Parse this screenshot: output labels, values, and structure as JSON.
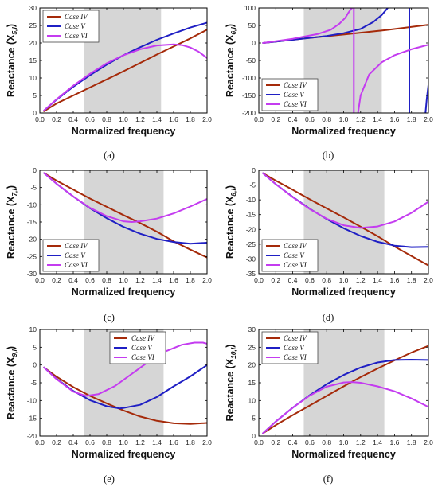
{
  "colors": {
    "Case IV": "#a52a0a",
    "Case V": "#1f1fc4",
    "Case VI": "#c43cf0",
    "band": "#d6d6d6"
  },
  "chart_data": [
    {
      "type": "line",
      "caption": "(a)",
      "xlabel": "Normalized frequency",
      "ylabel": "Reactance (X",
      "ylabel_sub": "5,l",
      "xlim": [
        0,
        2
      ],
      "ylim": [
        0,
        30
      ],
      "xticks": [
        0.0,
        0.2,
        0.4,
        0.6,
        0.8,
        1.0,
        1.2,
        1.4,
        1.6,
        1.8,
        2.0
      ],
      "yticks": [
        0,
        5,
        10,
        15,
        20,
        25,
        30
      ],
      "shaded": [
        0.53,
        1.45
      ],
      "legend": "top-left",
      "series": [
        {
          "name": "Case IV",
          "x": [
            0.05,
            0.2,
            0.4,
            0.6,
            0.8,
            1.0,
            1.2,
            1.4,
            1.6,
            1.8,
            2.0
          ],
          "y": [
            0.5,
            2.7,
            5.0,
            7.3,
            9.6,
            11.9,
            14.3,
            16.7,
            19.0,
            21.3,
            23.8
          ]
        },
        {
          "name": "Case V",
          "x": [
            0.05,
            0.2,
            0.4,
            0.6,
            0.8,
            1.0,
            1.2,
            1.4,
            1.6,
            1.8,
            2.0
          ],
          "y": [
            0.7,
            3.8,
            7.5,
            10.8,
            13.8,
            16.5,
            18.8,
            20.9,
            22.7,
            24.4,
            25.8
          ]
        },
        {
          "name": "Case VI",
          "x": [
            0.05,
            0.2,
            0.4,
            0.6,
            0.8,
            1.0,
            1.2,
            1.4,
            1.6,
            1.7,
            1.8,
            1.9,
            2.0
          ],
          "y": [
            0.7,
            3.9,
            7.8,
            11.2,
            14.2,
            16.5,
            18.2,
            19.3,
            19.6,
            19.4,
            18.7,
            17.5,
            15.7
          ]
        }
      ]
    },
    {
      "type": "line",
      "caption": "(b)",
      "xlabel": "Normalized frequency",
      "ylabel": "Reactance (X",
      "ylabel_sub": "6,l",
      "xlim": [
        0,
        2
      ],
      "ylim": [
        -200,
        100
      ],
      "xticks": [
        0.0,
        0.2,
        0.4,
        0.6,
        0.8,
        1.0,
        1.2,
        1.4,
        1.6,
        1.8,
        2.0
      ],
      "yticks": [
        -200,
        -150,
        -100,
        -50,
        0,
        50,
        100
      ],
      "shaded": [
        0.53,
        1.45
      ],
      "legend": "bottom-left",
      "series": [
        {
          "name": "Case IV",
          "x": [
            0.05,
            0.5,
            1.0,
            1.5,
            2.0
          ],
          "y": [
            0,
            12,
            24,
            37,
            52
          ]
        },
        {
          "name": "Case V",
          "segments": [
            {
              "x": [
                0.05,
                0.4,
                0.8,
                1.0,
                1.2,
                1.35,
                1.45,
                1.52
              ],
              "y": [
                0,
                9,
                20,
                28,
                40,
                60,
                80,
                100
              ]
            },
            {
              "x": [
                1.775,
                1.775
              ],
              "y": [
                100,
                -200
              ]
            },
            {
              "x": [
                1.965,
                1.98,
                2.0
              ],
              "y": [
                -200,
                -160,
                -120
              ]
            }
          ]
        },
        {
          "name": "Case VI",
          "segments": [
            {
              "x": [
                0.05,
                0.4,
                0.7,
                0.85,
                0.95,
                1.02,
                1.06,
                1.09,
                1.1
              ],
              "y": [
                0,
                12,
                26,
                38,
                55,
                72,
                88,
                98,
                100
              ]
            },
            {
              "x": [
                1.12,
                1.12
              ],
              "y": [
                100,
                -200
              ]
            },
            {
              "x": [
                1.17,
                1.2,
                1.3,
                1.45,
                1.6,
                1.8,
                2.0
              ],
              "y": [
                -200,
                -150,
                -90,
                -55,
                -35,
                -18,
                -5
              ]
            }
          ]
        }
      ]
    },
    {
      "type": "line",
      "caption": "(c)",
      "xlabel": "Normalized frequency",
      "ylabel": "Reactance (X",
      "ylabel_sub": "7,l",
      "xlim": [
        0,
        2
      ],
      "ylim": [
        -30,
        0
      ],
      "xticks": [
        0.0,
        0.2,
        0.4,
        0.6,
        0.8,
        1.0,
        1.2,
        1.4,
        1.6,
        1.8,
        2.0
      ],
      "yticks": [
        -30,
        -25,
        -20,
        -15,
        -10,
        -5,
        0
      ],
      "shaded": [
        0.53,
        1.48
      ],
      "legend": "bottom-left",
      "series": [
        {
          "name": "Case IV",
          "x": [
            0.05,
            0.2,
            0.4,
            0.6,
            0.8,
            1.0,
            1.2,
            1.4,
            1.6,
            1.8,
            2.0
          ],
          "y": [
            -0.8,
            -3.0,
            -5.6,
            -8.2,
            -10.6,
            -13.0,
            -15.3,
            -17.8,
            -20.6,
            -23.0,
            -25.3
          ]
        },
        {
          "name": "Case V",
          "x": [
            0.05,
            0.2,
            0.4,
            0.6,
            0.8,
            1.0,
            1.2,
            1.4,
            1.6,
            1.8,
            2.0
          ],
          "y": [
            -0.8,
            -3.9,
            -7.6,
            -11.0,
            -13.9,
            -16.4,
            -18.4,
            -19.9,
            -20.8,
            -21.3,
            -21.0
          ]
        },
        {
          "name": "Case VI",
          "x": [
            0.05,
            0.2,
            0.4,
            0.6,
            0.8,
            1.0,
            1.1,
            1.2,
            1.4,
            1.6,
            1.8,
            2.0
          ],
          "y": [
            -0.8,
            -3.9,
            -7.6,
            -10.9,
            -13.3,
            -14.8,
            -15.0,
            -14.8,
            -14.0,
            -12.5,
            -10.5,
            -8.3
          ]
        }
      ]
    },
    {
      "type": "line",
      "caption": "(d)",
      "xlabel": "Normalized frequency",
      "ylabel": "Reactance (X",
      "ylabel_sub": "8,l",
      "xlim": [
        0,
        2
      ],
      "ylim": [
        -35,
        0
      ],
      "xticks": [
        0.0,
        0.2,
        0.4,
        0.6,
        0.8,
        1.0,
        1.2,
        1.4,
        1.6,
        1.8,
        2.0
      ],
      "yticks": [
        -35,
        -30,
        -25,
        -20,
        -15,
        -10,
        -5,
        0
      ],
      "shaded": [
        0.53,
        1.48
      ],
      "legend": "bottom-left",
      "series": [
        {
          "name": "Case IV",
          "x": [
            0.05,
            0.2,
            0.4,
            0.6,
            0.8,
            1.0,
            1.2,
            1.4,
            1.6,
            1.8,
            2.0
          ],
          "y": [
            -1.0,
            -3.5,
            -6.6,
            -9.8,
            -12.9,
            -15.9,
            -19.1,
            -22.3,
            -25.8,
            -29.0,
            -32.2
          ]
        },
        {
          "name": "Case V",
          "x": [
            0.05,
            0.2,
            0.4,
            0.6,
            0.8,
            1.0,
            1.2,
            1.4,
            1.6,
            1.8,
            2.0
          ],
          "y": [
            -1.0,
            -4.7,
            -9.0,
            -13.0,
            -16.5,
            -19.6,
            -22.2,
            -24.2,
            -25.5,
            -26.0,
            -25.9
          ]
        },
        {
          "name": "Case VI",
          "x": [
            0.05,
            0.2,
            0.4,
            0.6,
            0.8,
            1.0,
            1.2,
            1.4,
            1.6,
            1.8,
            2.0
          ],
          "y": [
            -1.0,
            -4.7,
            -9.1,
            -13.1,
            -16.4,
            -18.6,
            -19.5,
            -19.0,
            -17.3,
            -14.4,
            -10.6
          ]
        }
      ]
    },
    {
      "type": "line",
      "caption": "(e)",
      "xlabel": "Normalized frequency",
      "ylabel": "Reactance (X",
      "ylabel_sub": "9,l",
      "xlim": [
        0,
        2
      ],
      "ylim": [
        -20,
        10
      ],
      "xticks": [
        0.0,
        0.2,
        0.4,
        0.6,
        0.8,
        1.0,
        1.2,
        1.4,
        1.6,
        1.8,
        2.0
      ],
      "yticks": [
        -20,
        -15,
        -10,
        -5,
        0,
        5,
        10
      ],
      "shaded": [
        0.53,
        1.48
      ],
      "legend": "top-right",
      "series": [
        {
          "name": "Case IV",
          "x": [
            0.05,
            0.2,
            0.4,
            0.6,
            0.8,
            1.0,
            1.2,
            1.4,
            1.6,
            1.8,
            2.0
          ],
          "y": [
            -0.7,
            -3.3,
            -6.2,
            -8.7,
            -10.8,
            -12.8,
            -14.5,
            -15.7,
            -16.4,
            -16.6,
            -16.3
          ]
        },
        {
          "name": "Case V",
          "x": [
            0.05,
            0.2,
            0.4,
            0.6,
            0.8,
            0.95,
            1.0,
            1.2,
            1.4,
            1.6,
            1.8,
            2.0
          ],
          "y": [
            -0.7,
            -3.9,
            -7.3,
            -9.9,
            -11.6,
            -12.2,
            -12.1,
            -11.2,
            -9.0,
            -6.0,
            -3.2,
            0.0
          ]
        },
        {
          "name": "Case VI",
          "x": [
            0.05,
            0.2,
            0.4,
            0.55,
            0.7,
            0.9,
            1.1,
            1.3,
            1.5,
            1.7,
            1.85,
            1.95,
            2.0
          ],
          "y": [
            -0.7,
            -4.0,
            -7.5,
            -8.7,
            -8.2,
            -5.9,
            -2.5,
            0.9,
            3.8,
            5.7,
            6.3,
            6.3,
            6.0
          ]
        }
      ]
    },
    {
      "type": "line",
      "caption": "(f)",
      "xlabel": "Normalized frequency",
      "ylabel": "Reactance (X",
      "ylabel_sub": "10,l",
      "xlim": [
        0,
        2
      ],
      "ylim": [
        0,
        30
      ],
      "xticks": [
        0.0,
        0.2,
        0.4,
        0.6,
        0.8,
        1.0,
        1.2,
        1.4,
        1.6,
        1.8,
        2.0
      ],
      "yticks": [
        0,
        5,
        10,
        15,
        20,
        25,
        30
      ],
      "shaded": [
        0.53,
        1.48
      ],
      "legend": "top-left",
      "series": [
        {
          "name": "Case IV",
          "x": [
            0.05,
            0.2,
            0.4,
            0.6,
            0.8,
            1.0,
            1.2,
            1.4,
            1.6,
            1.8,
            2.0
          ],
          "y": [
            0.8,
            3.1,
            5.9,
            8.6,
            11.3,
            14.0,
            16.6,
            19.0,
            21.3,
            23.5,
            25.4
          ]
        },
        {
          "name": "Case V",
          "x": [
            0.05,
            0.2,
            0.4,
            0.6,
            0.8,
            1.0,
            1.2,
            1.4,
            1.6,
            1.8,
            2.0
          ],
          "y": [
            0.8,
            4.1,
            8.0,
            11.5,
            14.6,
            17.2,
            19.3,
            20.7,
            21.4,
            21.5,
            21.4
          ]
        },
        {
          "name": "Case VI",
          "x": [
            0.05,
            0.2,
            0.4,
            0.6,
            0.8,
            1.0,
            1.1,
            1.2,
            1.4,
            1.6,
            1.8,
            2.0
          ],
          "y": [
            0.8,
            4.1,
            8.0,
            11.4,
            13.9,
            15.1,
            15.2,
            15.0,
            14.0,
            12.6,
            10.6,
            8.2
          ]
        }
      ]
    }
  ]
}
